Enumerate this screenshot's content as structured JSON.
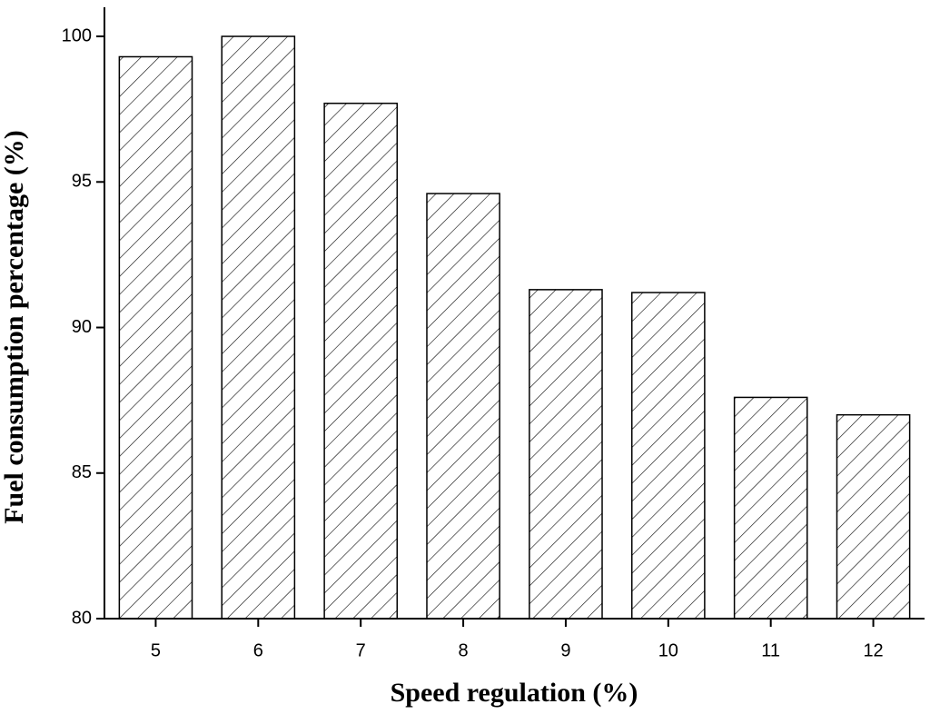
{
  "chart_data": {
    "type": "bar",
    "x_label": "Speed regulation (%)",
    "y_label": "Fuel consumption percentage (%)",
    "categories": [
      "5",
      "6",
      "7",
      "8",
      "9",
      "10",
      "11",
      "12"
    ],
    "values": [
      99.3,
      100,
      97.7,
      94.6,
      91.3,
      91.2,
      87.6,
      87.0
    ],
    "color": "#000000",
    "hatch": true,
    "ylim": [
      80,
      101
    ],
    "yticks": [
      80,
      85,
      90,
      95,
      100
    ],
    "grid": false
  }
}
